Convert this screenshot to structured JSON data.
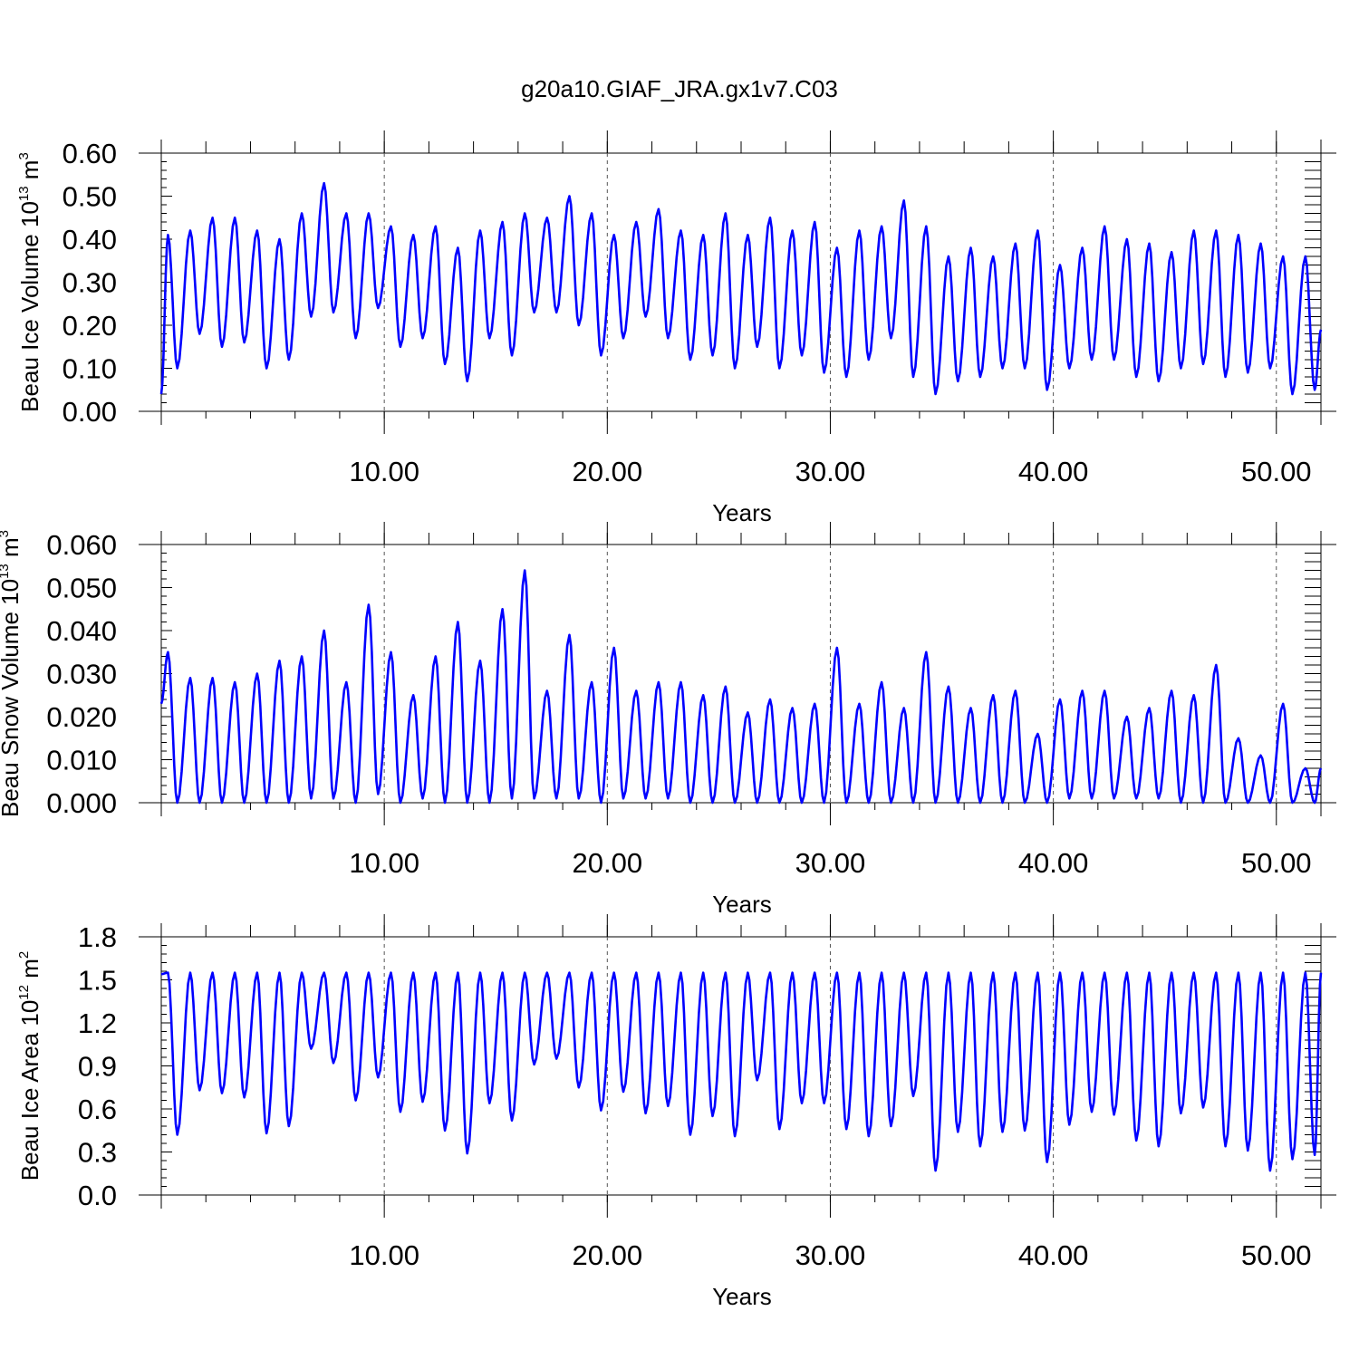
{
  "figure": {
    "title": "g20a10.GIAF_JRA.gx1v7.C03"
  },
  "colors": {
    "series": "#0000ff",
    "axes": "#000000",
    "gridline": "#555555",
    "background": "#ffffff"
  },
  "chart_data": [
    {
      "type": "line",
      "ylabel": {
        "text": "Beau Ice Volume 10",
        "sup": "13",
        "unit": " m",
        "unit_sup": "3"
      },
      "xlabel": "Years",
      "xlim": [
        0,
        52
      ],
      "ylim": [
        0,
        0.6
      ],
      "grid": "vertical dashed lines at 10-year ticks",
      "yticks": [
        0,
        0.1,
        0.2,
        0.3,
        0.4,
        0.5,
        0.6
      ],
      "ytick_labels": [
        "0.00",
        "0.10",
        "0.20",
        "0.30",
        "0.40",
        "0.50",
        "0.60"
      ],
      "xticks": [
        10,
        20,
        30,
        40,
        50
      ],
      "xtick_labels": [
        "10.00",
        "20.00",
        "30.00",
        "40.00",
        "50.00"
      ],
      "series": [
        {
          "color": "#0000ff",
          "start": 0.04,
          "step": 1,
          "peaks": [
            0.41,
            0.42,
            0.45,
            0.45,
            0.42,
            0.4,
            0.46,
            0.53,
            0.46,
            0.46,
            0.43,
            0.41,
            0.43,
            0.38,
            0.42,
            0.44,
            0.46,
            0.45,
            0.5,
            0.46,
            0.41,
            0.44,
            0.47,
            0.42,
            0.41,
            0.46,
            0.41,
            0.45,
            0.42,
            0.44,
            0.38,
            0.42,
            0.43,
            0.49,
            0.43,
            0.36,
            0.38,
            0.36,
            0.39,
            0.42,
            0.34,
            0.38,
            0.43,
            0.4,
            0.39,
            0.37,
            0.42,
            0.42,
            0.41,
            0.39,
            0.36,
            0.36
          ],
          "troughs": [
            0.1,
            0.18,
            0.15,
            0.16,
            0.1,
            0.12,
            0.22,
            0.23,
            0.17,
            0.24,
            0.15,
            0.17,
            0.11,
            0.07,
            0.17,
            0.13,
            0.23,
            0.23,
            0.2,
            0.13,
            0.17,
            0.22,
            0.17,
            0.12,
            0.13,
            0.1,
            0.15,
            0.1,
            0.13,
            0.09,
            0.08,
            0.12,
            0.17,
            0.08,
            0.04,
            0.07,
            0.08,
            0.1,
            0.1,
            0.05,
            0.1,
            0.12,
            0.12,
            0.08,
            0.07,
            0.1,
            0.11,
            0.08,
            0.09,
            0.1,
            0.04,
            0.05
          ],
          "end_value": 0.19
        }
      ]
    },
    {
      "type": "line",
      "ylabel": {
        "text": "Beau Snow Volume 10",
        "sup": "13",
        "unit": " m",
        "unit_sup": "3"
      },
      "xlabel": "Years",
      "xlim": [
        0,
        52
      ],
      "ylim": [
        0,
        0.06
      ],
      "grid": "vertical dashed lines at 10-year ticks",
      "yticks": [
        0,
        0.01,
        0.02,
        0.03,
        0.04,
        0.05,
        0.06
      ],
      "ytick_labels": [
        "0.000",
        "0.010",
        "0.020",
        "0.030",
        "0.040",
        "0.050",
        "0.060"
      ],
      "xticks": [
        10,
        20,
        30,
        40,
        50
      ],
      "xtick_labels": [
        "10.00",
        "20.00",
        "30.00",
        "40.00",
        "50.00"
      ],
      "series": [
        {
          "color": "#0000ff",
          "start": 0.023,
          "step": 1,
          "peaks": [
            0.035,
            0.029,
            0.029,
            0.028,
            0.03,
            0.033,
            0.034,
            0.04,
            0.028,
            0.046,
            0.035,
            0.025,
            0.034,
            0.042,
            0.033,
            0.045,
            0.054,
            0.026,
            0.039,
            0.028,
            0.036,
            0.026,
            0.028,
            0.028,
            0.025,
            0.027,
            0.021,
            0.024,
            0.022,
            0.023,
            0.036,
            0.023,
            0.028,
            0.022,
            0.035,
            0.027,
            0.022,
            0.025,
            0.026,
            0.016,
            0.024,
            0.026,
            0.026,
            0.02,
            0.022,
            0.026,
            0.025,
            0.032,
            0.015,
            0.011,
            0.023,
            0.008
          ],
          "troughs": [
            0.0,
            0.0,
            0.0,
            0.0,
            0.0,
            0.0,
            0.001,
            0.001,
            0.0,
            0.002,
            0.0,
            0.001,
            0.0,
            0.0,
            0.0,
            0.001,
            0.001,
            0.001,
            0.001,
            0.0,
            0.001,
            0.001,
            0.001,
            0.0,
            0.0,
            0.0,
            0.0,
            0.0,
            0.0,
            0.0,
            0.0,
            0.0,
            0.0,
            0.0,
            0.0,
            0.0,
            0.0,
            0.0,
            0.0,
            0.0,
            0.001,
            0.001,
            0.001,
            0.001,
            0.001,
            0.0,
            0.0,
            0.0,
            0.0,
            0.0,
            0.0,
            0.0
          ],
          "end_value": 0.008
        }
      ]
    },
    {
      "type": "line",
      "ylabel": {
        "text": "Beau Ice Area 10",
        "sup": "12",
        "unit": " m",
        "unit_sup": "2"
      },
      "xlabel": "Years",
      "xlim": [
        0,
        52
      ],
      "ylim": [
        0,
        1.8
      ],
      "grid": "vertical dashed lines at 10-year ticks",
      "yticks": [
        0,
        0.3,
        0.6,
        0.9,
        1.2,
        1.5,
        1.8
      ],
      "ytick_labels": [
        "0.0",
        "0.3",
        "0.6",
        "0.9",
        "1.2",
        "1.5",
        "1.8"
      ],
      "xticks": [
        10,
        20,
        30,
        40,
        50
      ],
      "xtick_labels": [
        "10.00",
        "20.00",
        "30.00",
        "40.00",
        "50.00"
      ],
      "series": [
        {
          "color": "#0000ff",
          "start": 1.54,
          "step": 1,
          "peaks": [
            1.55,
            1.55,
            1.55,
            1.55,
            1.55,
            1.55,
            1.55,
            1.55,
            1.55,
            1.55,
            1.55,
            1.55,
            1.55,
            1.55,
            1.55,
            1.55,
            1.55,
            1.55,
            1.55,
            1.55,
            1.55,
            1.55,
            1.55,
            1.55,
            1.55,
            1.55,
            1.55,
            1.55,
            1.55,
            1.55,
            1.55,
            1.55,
            1.55,
            1.55,
            1.55,
            1.55,
            1.55,
            1.55,
            1.55,
            1.55,
            1.55,
            1.55,
            1.55,
            1.55,
            1.55,
            1.55,
            1.55,
            1.55,
            1.55,
            1.55,
            1.55,
            1.55
          ],
          "troughs": [
            0.42,
            0.73,
            0.71,
            0.68,
            0.43,
            0.48,
            1.02,
            0.92,
            0.66,
            0.82,
            0.58,
            0.65,
            0.45,
            0.29,
            0.64,
            0.52,
            0.91,
            0.95,
            0.75,
            0.59,
            0.72,
            0.57,
            0.62,
            0.42,
            0.55,
            0.41,
            0.8,
            0.46,
            0.64,
            0.64,
            0.46,
            0.41,
            0.48,
            0.69,
            0.17,
            0.44,
            0.34,
            0.44,
            0.45,
            0.23,
            0.49,
            0.58,
            0.56,
            0.38,
            0.34,
            0.57,
            0.61,
            0.34,
            0.31,
            0.17,
            0.25,
            0.28
          ],
          "end_value": 1.55
        }
      ]
    }
  ]
}
